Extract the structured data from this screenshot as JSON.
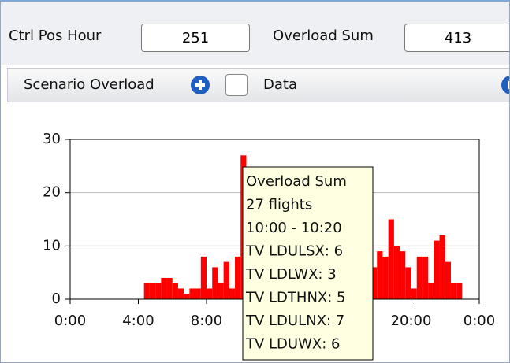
{
  "toolbar": {
    "ctrl_pos_hour_label": "Ctrl Pos Hour",
    "ctrl_pos_hour_value": "251",
    "overload_sum_label": "Overload Sum",
    "overload_sum_value": "413"
  },
  "subbar": {
    "scenario_label": "Scenario Overload",
    "data_label": "Data"
  },
  "chart_data": {
    "type": "histogram",
    "color": "#ff0000",
    "grid": true,
    "bins": [
      0,
      20,
      40,
      60,
      80,
      100,
      120,
      140,
      160,
      180,
      200,
      220,
      240,
      260,
      280,
      300,
      320,
      340,
      360,
      380,
      400,
      420,
      440,
      460,
      480,
      500,
      520,
      540,
      560,
      580,
      600,
      620,
      640,
      660,
      680,
      700,
      720,
      740,
      760,
      780,
      800,
      820,
      840,
      860,
      880,
      900,
      920,
      940,
      960,
      980,
      1000,
      1020,
      1040,
      1060,
      1080,
      1100,
      1120,
      1140,
      1160,
      1180,
      1200,
      1220,
      1240,
      1260,
      1280,
      1300,
      1320,
      1340,
      1360,
      1380,
      1400,
      1420,
      1440
    ],
    "values": [
      0,
      0,
      0,
      0,
      0,
      0,
      0,
      0,
      0,
      0,
      0,
      0,
      0,
      3,
      3,
      3,
      4,
      4,
      3,
      2,
      1,
      2,
      2,
      8,
      2,
      6,
      3,
      7,
      2,
      8,
      27,
      5,
      9,
      6,
      4,
      7,
      3,
      5,
      8,
      6,
      4,
      5,
      7,
      3,
      6,
      5,
      4,
      8,
      6,
      3,
      5,
      7,
      4,
      6,
      9,
      8,
      15,
      10,
      9,
      6,
      2,
      8,
      8,
      3,
      11,
      12,
      7,
      3,
      3,
      0,
      0,
      0
    ],
    "xlim": [
      0,
      1440
    ],
    "xticks": [
      {
        "value": 0,
        "label": "0:00"
      },
      {
        "value": 240,
        "label": "4:00"
      },
      {
        "value": 480,
        "label": "8:00"
      },
      {
        "value": 720,
        "label": "12:00"
      },
      {
        "value": 960,
        "label": "16:00"
      },
      {
        "value": 1200,
        "label": "20:00"
      },
      {
        "value": 1440,
        "label": "0:00"
      }
    ],
    "ylim": [
      0,
      30
    ],
    "yticks": [
      0,
      10,
      20,
      30
    ]
  },
  "tooltip": {
    "lines": [
      "Overload Sum",
      "27 flights",
      "10:00 - 10:20",
      "TV LDULSX: 6",
      "TV LDLWX: 3",
      "TV LDTHNX: 5",
      "TV LDULNX: 7",
      "TV LDUWX: 6"
    ]
  }
}
